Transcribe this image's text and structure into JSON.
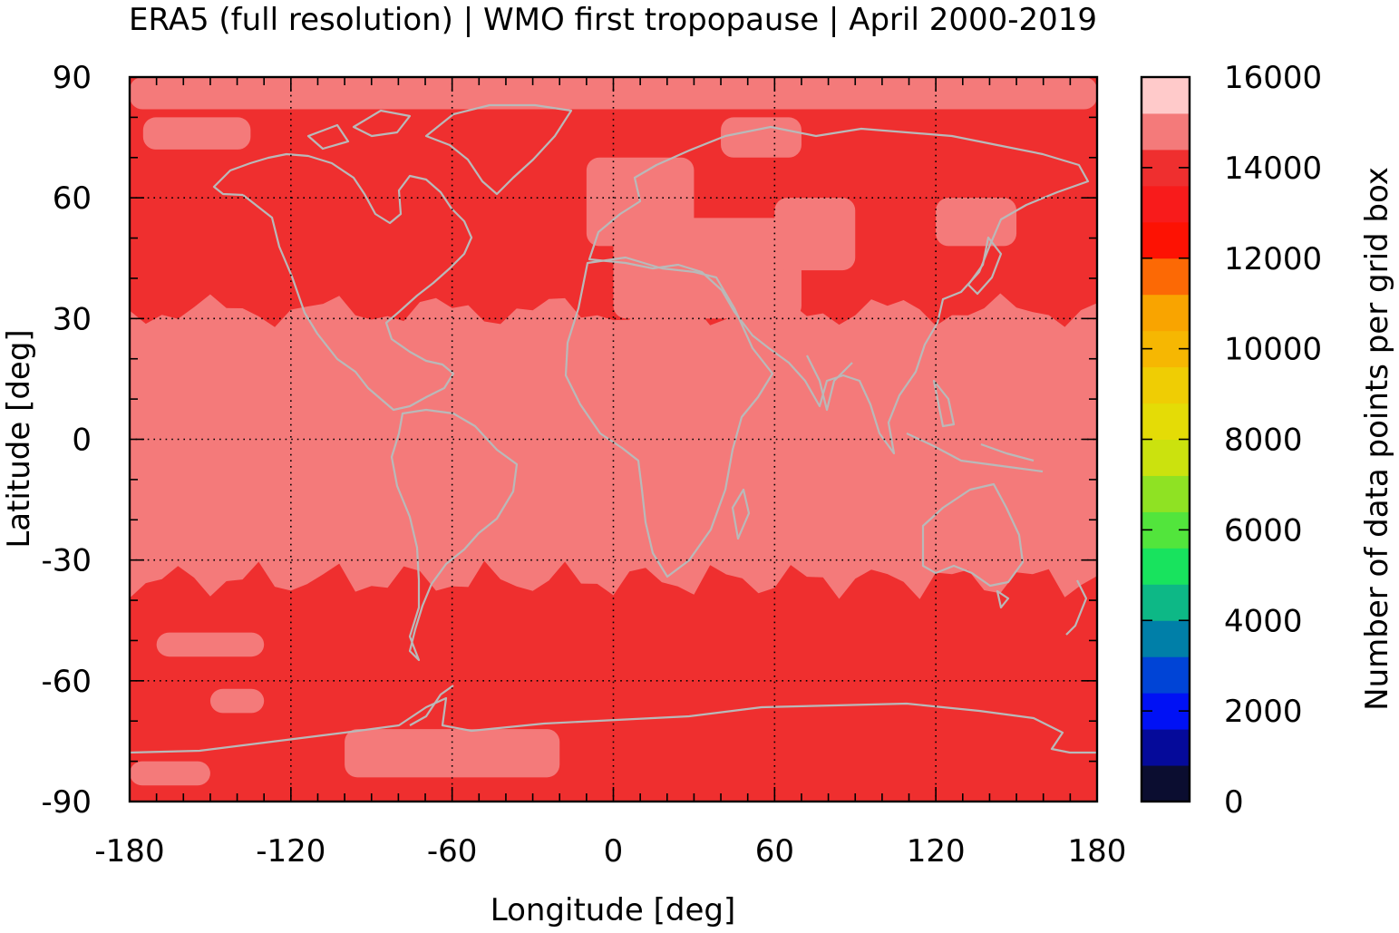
{
  "chart_data": {
    "type": "heatmap",
    "title": "ERA5 (full resolution) | WMO first tropopause | April 2000-2019",
    "xlabel": "Longitude [deg]",
    "ylabel": "Latitude [deg]",
    "xlim": [
      -180,
      180
    ],
    "ylim": [
      -90,
      90
    ],
    "x_ticks": [
      -180,
      -120,
      -60,
      0,
      60,
      120,
      180
    ],
    "y_ticks": [
      90,
      60,
      30,
      0,
      -30,
      -60,
      -90
    ],
    "x_tick_labels": [
      "-180",
      "-120",
      "-60",
      "0",
      "60",
      "120",
      "180"
    ],
    "y_tick_labels": [
      "90",
      "60",
      "30",
      "0",
      "-30",
      "-60",
      "-90"
    ],
    "grid": true,
    "colorbar": {
      "label": "Number of data points per grid box",
      "range": [
        0,
        16000
      ],
      "ticks": [
        0,
        2000,
        4000,
        6000,
        8000,
        10000,
        12000,
        14000,
        16000
      ],
      "tick_labels": [
        "0",
        "2000",
        "4000",
        "6000",
        "8000",
        "10000",
        "12000",
        "14000",
        "16000"
      ],
      "levels": [
        {
          "from": 0,
          "to": 800,
          "color": "#0b0d30"
        },
        {
          "from": 800,
          "to": 1600,
          "color": "#050a9a"
        },
        {
          "from": 1600,
          "to": 2400,
          "color": "#0011f5"
        },
        {
          "from": 2400,
          "to": 3200,
          "color": "#0044d6"
        },
        {
          "from": 3200,
          "to": 4000,
          "color": "#007fa8"
        },
        {
          "from": 4000,
          "to": 4800,
          "color": "#0db886"
        },
        {
          "from": 4800,
          "to": 5600,
          "color": "#18e35e"
        },
        {
          "from": 5600,
          "to": 6400,
          "color": "#52e53c"
        },
        {
          "from": 6400,
          "to": 7200,
          "color": "#8fe223"
        },
        {
          "from": 7200,
          "to": 8000,
          "color": "#cbe20e"
        },
        {
          "from": 8000,
          "to": 8800,
          "color": "#e4dc06"
        },
        {
          "from": 8800,
          "to": 9600,
          "color": "#efcd04"
        },
        {
          "from": 9600,
          "to": 10400,
          "color": "#f6b702"
        },
        {
          "from": 10400,
          "to": 11200,
          "color": "#f9a400"
        },
        {
          "from": 11200,
          "to": 12000,
          "color": "#fc6905"
        },
        {
          "from": 12000,
          "to": 12800,
          "color": "#fd1203"
        },
        {
          "from": 12800,
          "to": 13600,
          "color": "#f81b1b"
        },
        {
          "from": 13600,
          "to": 14400,
          "color": "#ef2f2f"
        },
        {
          "from": 14400,
          "to": 15200,
          "color": "#f47a7a"
        },
        {
          "from": 15200,
          "to": 16000,
          "color": "#ffcaca"
        }
      ]
    },
    "field": {
      "dominant_value_tropics": 14800,
      "dominant_value_extratropics": 14000,
      "tropical_band_lat": [
        -35,
        32
      ],
      "tropics_color": "#f47a7a",
      "extratropics_color": "#ef2f2f",
      "coastline_color": "#b9b9b9"
    }
  }
}
